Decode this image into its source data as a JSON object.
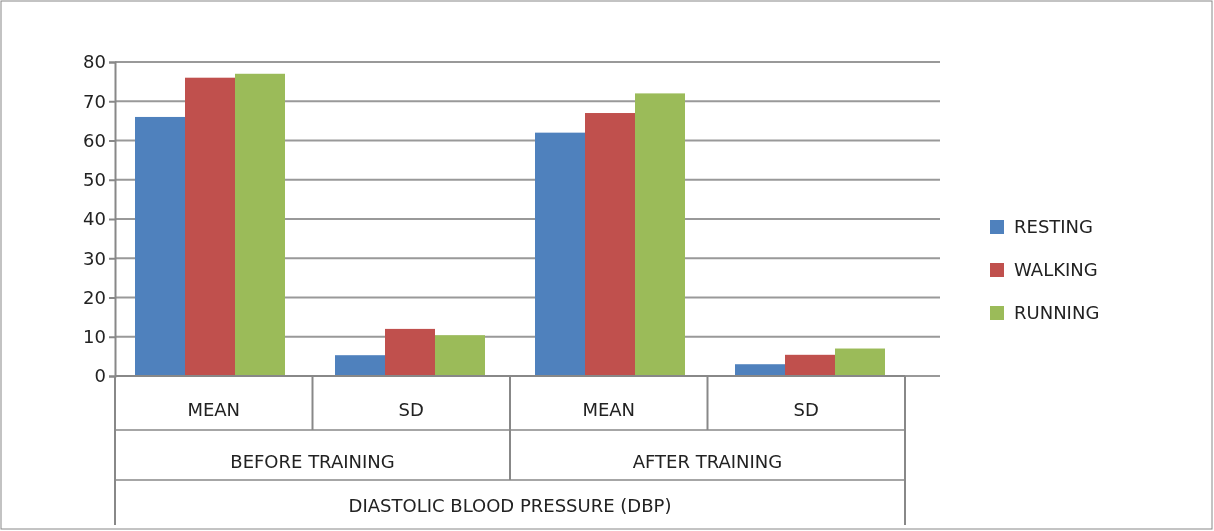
{
  "chart_data": {
    "type": "bar",
    "categories": [
      "MEAN",
      "SD",
      "MEAN",
      "SD"
    ],
    "series": [
      {
        "name": "RESTING",
        "color": "#4f81bd",
        "values": [
          66,
          5.3,
          62,
          3
        ]
      },
      {
        "name": "WALKING",
        "color": "#c0504d",
        "values": [
          76,
          12,
          67,
          5.4
        ]
      },
      {
        "name": "RUNNING",
        "color": "#9bbb59",
        "values": [
          77,
          10.4,
          72,
          7
        ]
      }
    ],
    "ylim": [
      0,
      80
    ],
    "yticks": [
      0,
      10,
      20,
      30,
      40,
      50,
      60,
      70,
      80
    ],
    "grid": "y",
    "legend": "right",
    "xlabel": "DIASTOLIC BLOOD PRESSURE (DBP)",
    "annotations": [
      "BEFORE TRAINING",
      "AFTER TRAINING"
    ]
  }
}
